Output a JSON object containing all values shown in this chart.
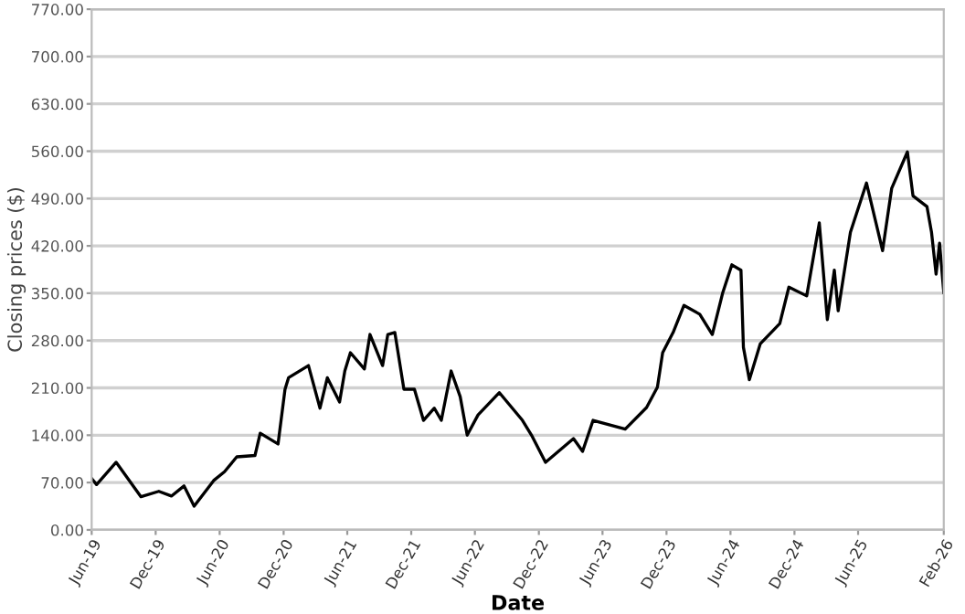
{
  "chart_data": {
    "type": "line",
    "xlabel": "Date",
    "ylabel": "Closing prices ($)",
    "grid": "y",
    "line_style": "solid",
    "xlim": [
      "2019-06-01",
      "2026-02-01"
    ],
    "xticks": [
      {
        "value": "2019-06-01",
        "label": "Jun-19"
      },
      {
        "value": "2019-12-01",
        "label": "Dec-19"
      },
      {
        "value": "2020-06-01",
        "label": "Jun-20"
      },
      {
        "value": "2020-12-01",
        "label": "Dec-20"
      },
      {
        "value": "2021-06-01",
        "label": "Jun-21"
      },
      {
        "value": "2021-12-01",
        "label": "Dec-21"
      },
      {
        "value": "2022-06-01",
        "label": "Jun-22"
      },
      {
        "value": "2022-12-01",
        "label": "Dec-22"
      },
      {
        "value": "2023-06-01",
        "label": "Jun-23"
      },
      {
        "value": "2023-12-01",
        "label": "Dec-23"
      },
      {
        "value": "2024-06-01",
        "label": "Jun-24"
      },
      {
        "value": "2024-12-01",
        "label": "Dec-24"
      },
      {
        "value": "2025-06-01",
        "label": "Jun-25"
      },
      {
        "value": "2026-02-01",
        "label": "Feb-26"
      }
    ],
    "ylim": [
      0,
      770
    ],
    "yticks": [
      {
        "value": 0,
        "label": "0.00"
      },
      {
        "value": 70,
        "label": "70.00"
      },
      {
        "value": 140,
        "label": "140.00"
      },
      {
        "value": 210,
        "label": "210.00"
      },
      {
        "value": 280,
        "label": "280.00"
      },
      {
        "value": 350,
        "label": "350.00"
      },
      {
        "value": 420,
        "label": "420.00"
      },
      {
        "value": 490,
        "label": "490.00"
      },
      {
        "value": 560,
        "label": "560.00"
      },
      {
        "value": 630,
        "label": "630.00"
      },
      {
        "value": 700,
        "label": "700.00"
      },
      {
        "value": 770,
        "label": "770.00"
      }
    ],
    "series": [
      {
        "color": "#000000",
        "x": [
          "2019-06-01",
          "2019-06-15",
          "2019-08-10",
          "2019-10-20",
          "2019-12-10",
          "2020-01-15",
          "2020-02-20",
          "2020-03-20",
          "2020-05-15",
          "2020-06-15",
          "2020-07-20",
          "2020-09-10",
          "2020-09-25",
          "2020-11-15",
          "2020-12-05",
          "2020-12-15",
          "2021-02-10",
          "2021-03-15",
          "2021-04-05",
          "2021-05-10",
          "2021-05-25",
          "2021-06-10",
          "2021-07-20",
          "2021-08-05",
          "2021-09-10",
          "2021-09-25",
          "2021-10-15",
          "2021-11-10",
          "2021-12-10",
          "2022-01-05",
          "2022-02-05",
          "2022-02-25",
          "2022-03-25",
          "2022-04-20",
          "2022-05-10",
          "2022-06-10",
          "2022-08-10",
          "2022-10-15",
          "2022-11-10",
          "2022-12-20",
          "2023-03-10",
          "2023-04-05",
          "2023-05-05",
          "2023-08-05",
          "2023-10-05",
          "2023-11-05",
          "2023-11-20",
          "2023-12-20",
          "2024-01-20",
          "2024-03-05",
          "2024-04-10",
          "2024-05-10",
          "2024-06-05",
          "2024-07-01",
          "2024-07-08",
          "2024-07-25",
          "2024-08-25",
          "2024-10-20",
          "2024-11-15",
          "2025-01-05",
          "2025-02-10",
          "2025-03-05",
          "2025-03-25",
          "2025-04-05",
          "2025-05-10",
          "2025-06-25",
          "2025-08-10",
          "2025-09-05",
          "2025-10-20",
          "2025-11-05",
          "2025-12-15",
          "2025-12-28",
          "2026-01-10",
          "2026-01-20",
          "2026-02-01"
        ],
        "values": [
          76,
          67,
          100,
          49,
          57,
          50,
          65,
          35,
          73,
          86,
          108,
          110,
          143,
          127,
          208,
          225,
          243,
          180,
          225,
          189,
          235,
          262,
          238,
          289,
          243,
          289,
          292,
          208,
          208,
          162,
          180,
          162,
          235,
          197,
          140,
          170,
          203,
          162,
          140,
          100,
          135,
          116,
          162,
          149,
          181,
          211,
          262,
          292,
          332,
          319,
          289,
          351,
          392,
          384,
          270,
          222,
          275,
          305,
          359,
          346,
          454,
          311,
          384,
          324,
          440,
          513,
          413,
          505,
          559,
          494,
          478,
          440,
          378,
          424,
          351
        ]
      }
    ]
  }
}
